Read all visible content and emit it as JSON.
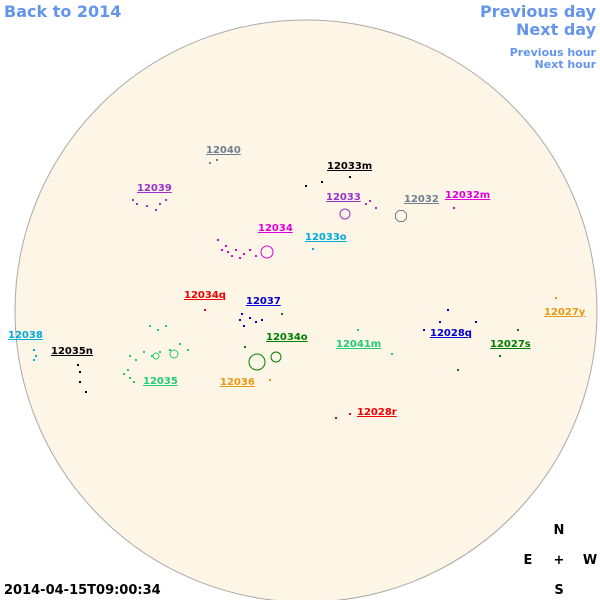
{
  "navigation": {
    "back": "Back to 2014",
    "previous_day": "Previous day",
    "next_day": "Next day",
    "previous_hour": "Previous hour",
    "next_hour": "Next hour"
  },
  "regions": [
    {
      "label": "12040",
      "color": "#708090"
    },
    {
      "label": "12033m",
      "color": "#000000"
    },
    {
      "label": "12039",
      "color": "#9932cc"
    },
    {
      "label": "12033",
      "color": "#9932cc"
    },
    {
      "label": "12032",
      "color": "#708090"
    },
    {
      "label": "12032m",
      "color": "#dd00dd"
    },
    {
      "label": "12034",
      "color": "#dd00dd"
    },
    {
      "label": "12033o",
      "color": "#00aadd"
    },
    {
      "label": "12034q",
      "color": "#ee0000"
    },
    {
      "label": "12037",
      "color": "#0000cc"
    },
    {
      "label": "12027y",
      "color": "#e69a10"
    },
    {
      "label": "12038",
      "color": "#00aadd"
    },
    {
      "label": "12034o",
      "color": "#008000"
    },
    {
      "label": "12028q",
      "color": "#0000cc"
    },
    {
      "label": "12041m",
      "color": "#22cc77"
    },
    {
      "label": "12027s",
      "color": "#008000"
    },
    {
      "label": "12035n",
      "color": "#000000"
    },
    {
      "label": "12035",
      "color": "#22cc77"
    },
    {
      "label": "12036",
      "color": "#e69a10"
    },
    {
      "label": "12028r",
      "color": "#ee0000"
    }
  ],
  "compass": {
    "north": "N",
    "east": "E",
    "center": "+",
    "west": "W",
    "south": "S"
  },
  "timestamp": "2014-04-15T09:00:34"
}
